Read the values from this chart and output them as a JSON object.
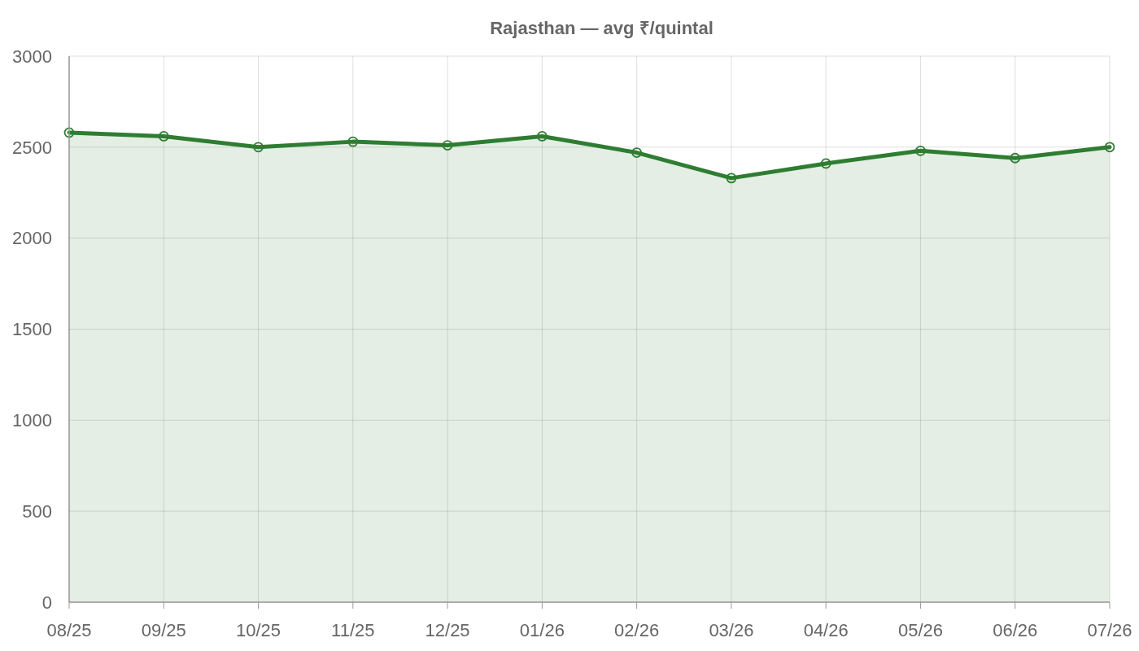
{
  "chart_data": {
    "type": "area",
    "title": "Rajasthan — avg ₹/quintal",
    "categories": [
      "08/25",
      "09/25",
      "10/25",
      "11/25",
      "12/25",
      "01/26",
      "02/26",
      "03/26",
      "04/26",
      "05/26",
      "06/26",
      "07/26"
    ],
    "series": [
      {
        "color": "#2e7d32",
        "values": [
          2580,
          2560,
          2500,
          2530,
          2510,
          2560,
          2470,
          2330,
          2410,
          2480,
          2440,
          2500
        ]
      }
    ],
    "ylim": [
      0,
      3000
    ],
    "yticks": [
      0,
      500,
      1000,
      1500,
      2000,
      2500,
      3000
    ],
    "grid": true,
    "marker": "circle",
    "line_style": "solid"
  }
}
